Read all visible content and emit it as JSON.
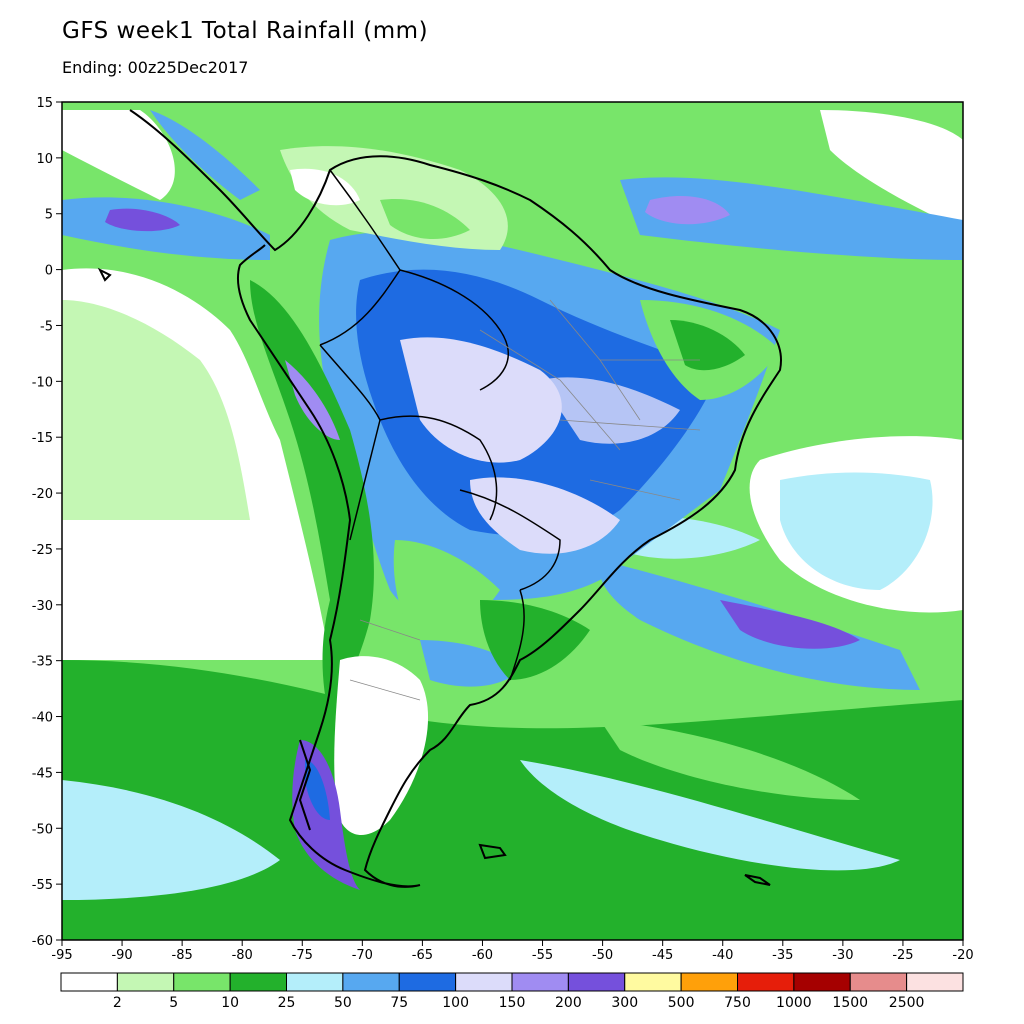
{
  "title": "GFS week1 Total Rainfall (mm)",
  "subtitle": "Ending: 00z25Dec2017",
  "map": {
    "lon_range": [
      -95,
      -20
    ],
    "lat_range": [
      -60,
      15
    ],
    "x_ticks": [
      "-95",
      "-90",
      "-85",
      "-80",
      "-75",
      "-70",
      "-65",
      "-60",
      "-55",
      "-50",
      "-45",
      "-40",
      "-35",
      "-30",
      "-25",
      "-20"
    ],
    "y_ticks": [
      "15",
      "10",
      "5",
      "0",
      "-5",
      "-10",
      "-15",
      "-20",
      "-25",
      "-30",
      "-35",
      "-40",
      "-45",
      "-50",
      "-55",
      "-60"
    ]
  },
  "legend": {
    "colors": [
      "#ffffff",
      "#c4f7b4",
      "#78e56a",
      "#23b12c",
      "#b4eefa",
      "#57a8f0",
      "#1e6be2",
      "#dcdcfa",
      "#a08cf2",
      "#7550dc",
      "#fffaa0",
      "#ffa00a",
      "#e61e0a",
      "#a50000",
      "#e68c8c",
      "#fce1e1"
    ],
    "labels": [
      "2",
      "5",
      "10",
      "25",
      "50",
      "75",
      "100",
      "150",
      "200",
      "300",
      "500",
      "750",
      "1000",
      "1500",
      "2500"
    ]
  }
}
